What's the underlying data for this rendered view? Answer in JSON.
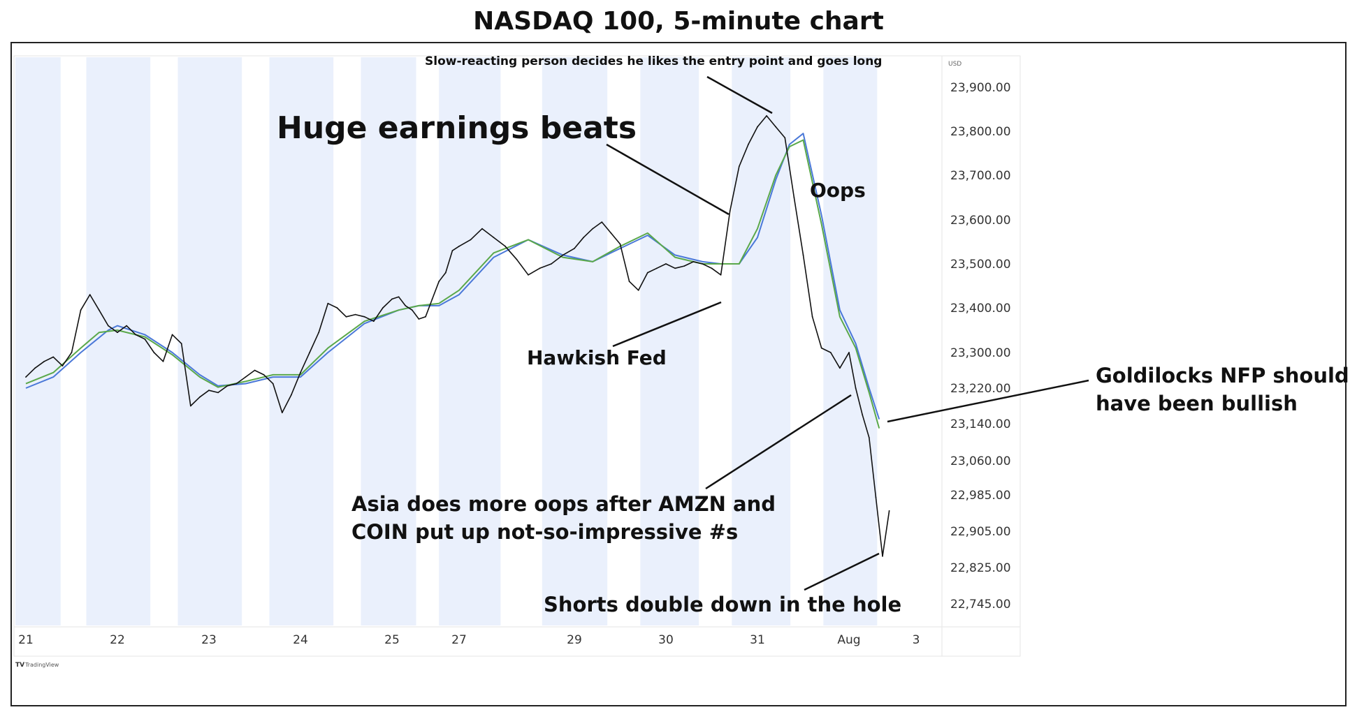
{
  "title": "NASDAQ 100, 5-minute chart",
  "currency_label": "USD",
  "watermark": "TradingView",
  "chart_data": {
    "type": "line",
    "title": "NASDAQ 100, 5-minute chart",
    "xlabel": "",
    "ylabel": "",
    "x_tick_labels": [
      "21",
      "22",
      "23",
      "24",
      "25",
      "27",
      "29",
      "30",
      "31",
      "Aug",
      "3"
    ],
    "y_tick_labels": [
      "23,900.00",
      "23,800.00",
      "23,700.00",
      "23,600.00",
      "23,500.00",
      "23,400.00",
      "23,300.00",
      "23,220.00",
      "23,140.00",
      "23,060.00",
      "22,985.00",
      "22,905.00",
      "22,825.00",
      "22,745.00"
    ],
    "y_tick_values": [
      23900,
      23800,
      23700,
      23600,
      23500,
      23400,
      23300,
      23220,
      23140,
      23060,
      22985,
      22905,
      22825,
      22745
    ],
    "x_range": [
      0,
      10
    ],
    "shaded_sessions": [
      [
        -0.14,
        0.38
      ],
      [
        0.66,
        1.36
      ],
      [
        1.66,
        2.36
      ],
      [
        2.66,
        3.36
      ],
      [
        3.66,
        4.36
      ],
      [
        4.7,
        5.36
      ],
      [
        5.72,
        6.36
      ],
      [
        6.72,
        7.36
      ],
      [
        7.72,
        8.36
      ],
      [
        8.72,
        9.42
      ]
    ],
    "colors": {
      "price": "#111111",
      "ma_fast": "#5aa84a",
      "ma_slow": "#4a78d8",
      "session_shade": "#eaf0fc"
    },
    "series": [
      {
        "key": "price",
        "x": [
          0,
          0.1,
          0.2,
          0.3,
          0.4,
          0.5,
          0.6,
          0.7,
          0.8,
          0.9,
          1.0,
          1.1,
          1.2,
          1.3,
          1.4,
          1.5,
          1.6,
          1.7,
          1.8,
          1.9,
          2.0,
          2.1,
          2.2,
          2.3,
          2.4,
          2.5,
          2.6,
          2.7,
          2.8,
          2.9,
          3.0,
          3.1,
          3.2,
          3.3,
          3.4,
          3.5,
          3.6,
          3.7,
          3.8,
          3.9,
          4.0,
          4.1,
          4.2,
          4.3,
          4.4,
          4.5,
          4.6,
          4.7,
          4.8,
          4.9,
          5.0,
          5.1,
          5.2,
          5.3,
          5.4,
          5.5,
          5.6,
          5.7,
          5.8,
          5.9,
          6.0,
          6.1,
          6.2,
          6.3,
          6.4,
          6.5,
          6.6,
          6.7,
          6.8,
          6.9,
          7.0,
          7.1,
          7.2,
          7.3,
          7.4,
          7.5,
          7.6,
          7.7,
          7.8,
          7.9,
          8.0,
          8.1,
          8.2,
          8.3,
          8.4,
          8.5,
          8.6,
          8.7,
          8.8,
          8.9,
          9.0,
          9.1,
          9.2,
          9.3,
          9.4,
          9.5,
          9.6
        ],
        "values": [
          23245,
          23265,
          23280,
          23290,
          23270,
          23300,
          23395,
          23430,
          23395,
          23360,
          23345,
          23360,
          23340,
          23330,
          23300,
          23280,
          23340,
          23320,
          23180,
          23200,
          23215,
          23210,
          23225,
          23230,
          23245,
          23260,
          23250,
          23230,
          23165,
          23205,
          23255,
          23300,
          23345,
          23410,
          23400,
          23380,
          23385,
          23380,
          23370,
          23400,
          23420,
          23425,
          23405,
          23395,
          23375,
          23380,
          23420,
          23460,
          23480,
          23530,
          23540,
          23555,
          23580,
          23560,
          23540,
          23510,
          23475,
          23490,
          23500,
          23520,
          23535,
          23560,
          23580,
          23595,
          23570,
          23545,
          23460,
          23440,
          23480,
          23490,
          23500,
          23490,
          23495,
          23505,
          23500,
          23490,
          23475,
          23620,
          23720,
          23770,
          23810,
          23835,
          23810,
          23785,
          23650,
          23520,
          23380,
          23310,
          23300,
          23265,
          23300,
          23220,
          23160,
          23110,
          22980,
          22850,
          22950
        ]
      },
      {
        "key": "ma_fast",
        "x": [
          0,
          0.3,
          0.6,
          0.8,
          1.0,
          1.3,
          1.6,
          1.9,
          2.1,
          2.4,
          2.7,
          3.0,
          3.3,
          3.7,
          4.1,
          4.4,
          4.7,
          5.0,
          5.3,
          5.6,
          5.9,
          6.2,
          6.5,
          6.8,
          7.1,
          7.4,
          7.6,
          7.8,
          8.0,
          8.2,
          8.35,
          8.5,
          8.7,
          8.9,
          9.1,
          9.3,
          9.45
        ],
        "values": [
          23230,
          23255,
          23310,
          23345,
          23350,
          23335,
          23295,
          23245,
          23222,
          23235,
          23250,
          23250,
          23310,
          23370,
          23395,
          23405,
          23410,
          23440,
          23525,
          23555,
          23515,
          23505,
          23540,
          23570,
          23515,
          23500,
          23500,
          23500,
          23580,
          23700,
          23765,
          23780,
          23590,
          23380,
          23310,
          23210,
          23130
        ]
      },
      {
        "key": "ma_slow",
        "x": [
          0,
          0.3,
          0.6,
          0.9,
          1.0,
          1.3,
          1.6,
          1.9,
          2.1,
          2.4,
          2.7,
          3.0,
          3.3,
          3.7,
          4.1,
          4.4,
          4.7,
          5.0,
          5.3,
          5.6,
          5.9,
          6.2,
          6.5,
          6.8,
          7.1,
          7.4,
          7.6,
          7.8,
          8.0,
          8.2,
          8.35,
          8.5,
          8.7,
          8.9,
          9.1,
          9.3,
          9.45
        ],
        "values": [
          23220,
          23245,
          23300,
          23350,
          23360,
          23340,
          23300,
          23250,
          23225,
          23230,
          23245,
          23245,
          23300,
          23365,
          23395,
          23405,
          23405,
          23430,
          23515,
          23555,
          23520,
          23505,
          23535,
          23565,
          23520,
          23505,
          23500,
          23500,
          23560,
          23690,
          23770,
          23795,
          23610,
          23395,
          23320,
          23220,
          23150
        ]
      }
    ],
    "annotations": [
      "Slow-reacting person decides he likes the entry point and goes long",
      "Huge earnings beats",
      "Oops",
      "Hawkish Fed",
      "Goldilocks NFP should have been bullish",
      "Asia does more oops after AMZN and COIN put up not-so-impressive #s",
      "Shorts double down in the hole"
    ]
  },
  "annotations": {
    "slow_reacting": "Slow-reacting person decides he likes the entry point and goes long",
    "earnings": "Huge earnings beats",
    "oops": "Oops",
    "hawkish": "Hawkish Fed",
    "goldilocks_l1": "Goldilocks NFP should",
    "goldilocks_l2": "have been bullish",
    "asia_l1": "Asia does more oops after AMZN and",
    "asia_l2": "COIN put up not-so-impressive #s",
    "shorts": "Shorts double down in the hole"
  }
}
